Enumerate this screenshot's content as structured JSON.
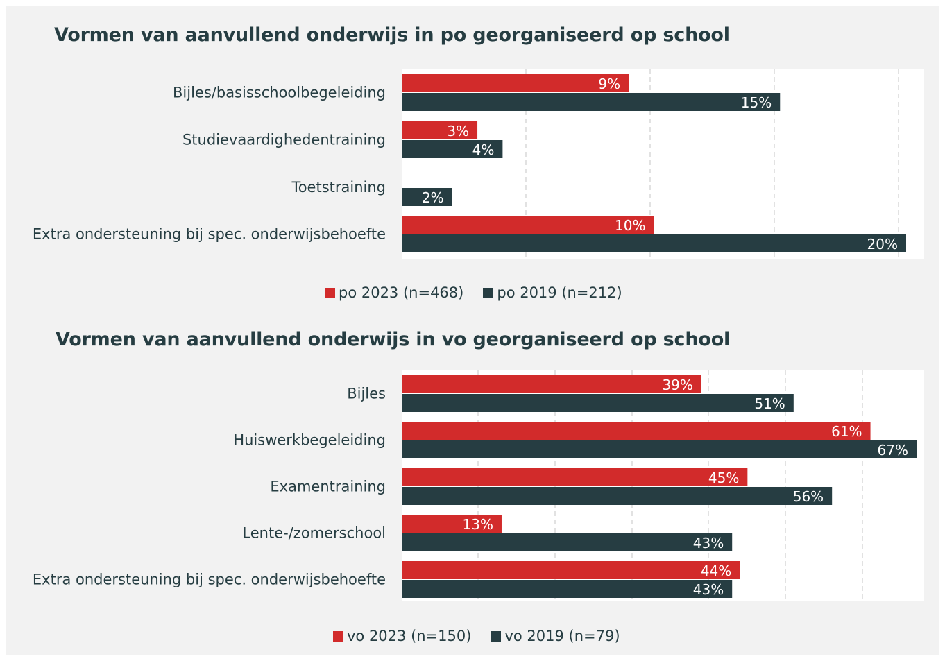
{
  "colors": {
    "series_2023": "#d22b2b",
    "series_2019": "#263d42",
    "background": "#f2f2f2",
    "plot": "#ffffff",
    "grid": "#d9d9d9"
  },
  "chart_data": [
    {
      "type": "bar",
      "orientation": "horizontal",
      "title": "Vormen van aanvullend onderwijs in po georganiseerd op school",
      "categories": [
        "Bijles/basisschoolbegeleiding",
        "Studievaardighedentraining",
        "Toetstraining",
        "Extra ondersteuning bij spec. onderwijsbehoefte"
      ],
      "series": [
        {
          "name": "po 2023 (n=468)",
          "values": [
            9,
            3,
            null,
            10
          ],
          "labels": [
            "9%",
            "3%",
            "",
            "10%"
          ]
        },
        {
          "name": "po 2019 (n=212)",
          "values": [
            15,
            4,
            2,
            20
          ],
          "labels": [
            "15%",
            "4%",
            "2%",
            "20%"
          ]
        }
      ],
      "xlim": [
        0,
        20
      ],
      "grid": true,
      "legend": "bottom"
    },
    {
      "type": "bar",
      "orientation": "horizontal",
      "title": "Vormen van aanvullend onderwijs in vo georganiseerd op school",
      "categories": [
        "Bijles",
        "Huiswerkbegeleiding",
        "Examentraining",
        "Lente-/zomerschool",
        "Extra ondersteuning bij spec. onderwijsbehoefte"
      ],
      "series": [
        {
          "name": "vo 2023 (n=150)",
          "values": [
            39,
            61,
            45,
            13,
            44
          ],
          "labels": [
            "39%",
            "61%",
            "45%",
            "13%",
            "44%"
          ]
        },
        {
          "name": "vo 2019 (n=79)",
          "values": [
            51,
            67,
            56,
            43,
            43
          ],
          "labels": [
            "51%",
            "67%",
            "56%",
            "43%",
            "43%"
          ]
        }
      ],
      "xlim": [
        0,
        70
      ],
      "grid": true,
      "legend": "bottom"
    }
  ]
}
